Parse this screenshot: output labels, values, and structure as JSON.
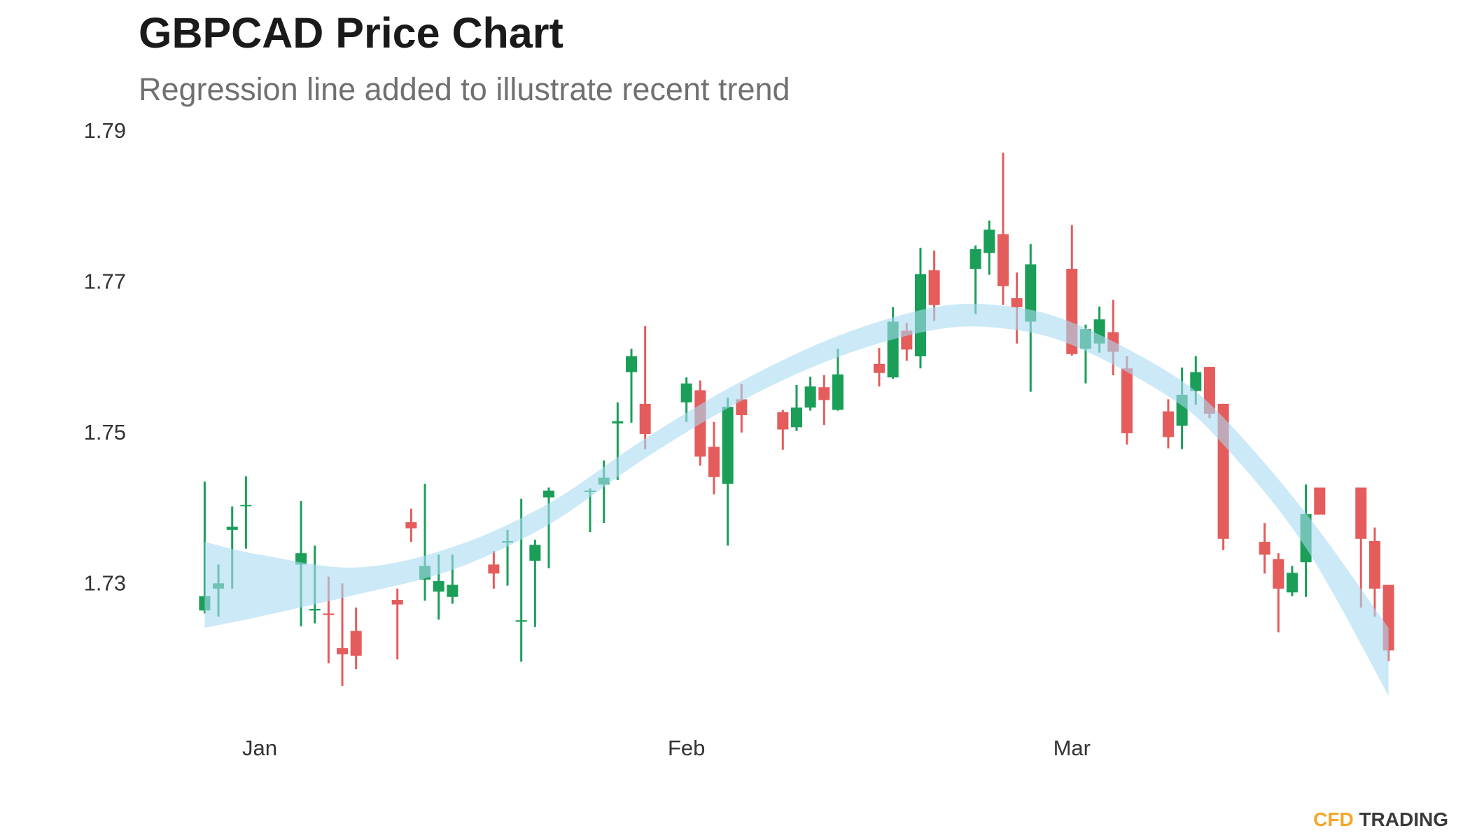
{
  "chart_data": {
    "type": "candlestick",
    "title": "GBPCAD Price Chart",
    "subtitle": "Regression line added to illustrate recent trend",
    "x": [
      -4,
      -3,
      -2,
      -1,
      3,
      4,
      5,
      6,
      7,
      10,
      11,
      12,
      13,
      14,
      17,
      18,
      19,
      20,
      21,
      24,
      25,
      26,
      27,
      28,
      31,
      32,
      33,
      34,
      35,
      38,
      39,
      40,
      41,
      42,
      45,
      46,
      47,
      48,
      49,
      52,
      53,
      54,
      55,
      56,
      59,
      60,
      61,
      62,
      63,
      66,
      67,
      68,
      69,
      70,
      73,
      74,
      75,
      76,
      77,
      80,
      81,
      82
    ],
    "open": [
      1.7266,
      1.7295,
      1.7373,
      1.7405,
      1.7327,
      1.7266,
      1.7262,
      1.7216,
      1.7239,
      1.728,
      1.7383,
      1.7307,
      1.7291,
      1.7284,
      1.7327,
      1.7356,
      1.7252,
      1.7332,
      1.7416,
      1.7423,
      1.7433,
      1.7514,
      1.7582,
      1.754,
      1.7542,
      1.7558,
      1.7483,
      1.7434,
      1.7546,
      1.7529,
      1.7509,
      1.7535,
      1.7562,
      1.7532,
      1.7593,
      1.7575,
      1.7637,
      1.7603,
      1.7717,
      1.7719,
      1.774,
      1.7765,
      1.768,
      1.7649,
      1.7719,
      1.7613,
      1.762,
      1.7635,
      1.7587,
      1.753,
      1.7511,
      1.7557,
      1.7589,
      1.754,
      1.7357,
      1.7334,
      1.729,
      1.733,
      1.7429,
      1.7429,
      1.7358,
      1.73
    ],
    "high": [
      1.7437,
      1.7327,
      1.7404,
      1.7444,
      1.7411,
      1.7352,
      1.7311,
      1.7302,
      1.727,
      1.7295,
      1.7401,
      1.7434,
      1.734,
      1.734,
      1.7345,
      1.7373,
      1.7414,
      1.736,
      1.7429,
      1.7428,
      1.7465,
      1.7542,
      1.7613,
      1.7643,
      1.7575,
      1.7571,
      1.7516,
      1.7548,
      1.7566,
      1.7532,
      1.7565,
      1.7576,
      1.7578,
      1.7613,
      1.7614,
      1.7668,
      1.7647,
      1.7747,
      1.7743,
      1.775,
      1.7783,
      1.7873,
      1.7714,
      1.7752,
      1.7777,
      1.7645,
      1.7669,
      1.7678,
      1.7603,
      1.7546,
      1.7588,
      1.7603,
      1.7589,
      1.754,
      1.7382,
      1.7342,
      1.7325,
      1.7433,
      1.7429,
      1.7429,
      1.7376,
      1.73
    ],
    "low": [
      1.7262,
      1.7258,
      1.7295,
      1.7348,
      1.7245,
      1.7249,
      1.7196,
      1.7166,
      1.7188,
      1.7201,
      1.7357,
      1.7279,
      1.7254,
      1.7275,
      1.7295,
      1.7299,
      1.7198,
      1.7244,
      1.7322,
      1.737,
      1.7382,
      1.7439,
      1.7515,
      1.748,
      1.7516,
      1.7458,
      1.742,
      1.7352,
      1.7502,
      1.7479,
      1.7504,
      1.7531,
      1.7512,
      1.7531,
      1.7563,
      1.7573,
      1.7597,
      1.7587,
      1.765,
      1.7659,
      1.7711,
      1.7671,
      1.762,
      1.7556,
      1.7604,
      1.7567,
      1.7608,
      1.7578,
      1.7486,
      1.7481,
      1.748,
      1.7539,
      1.7521,
      1.7346,
      1.7315,
      1.7237,
      1.7285,
      1.7284,
      1.7393,
      1.727,
      1.7258,
      1.7199
    ],
    "close": [
      1.7285,
      1.7302,
      1.7377,
      1.7406,
      1.7342,
      1.7268,
      1.726,
      1.7208,
      1.7206,
      1.7274,
      1.7375,
      1.7325,
      1.7305,
      1.73,
      1.7315,
      1.7358,
      1.7253,
      1.7353,
      1.7425,
      1.7425,
      1.7442,
      1.7517,
      1.7603,
      1.75,
      1.7567,
      1.747,
      1.7443,
      1.7536,
      1.7525,
      1.7506,
      1.7535,
      1.7563,
      1.7545,
      1.7579,
      1.7581,
      1.7649,
      1.7612,
      1.7712,
      1.7671,
      1.7745,
      1.7771,
      1.7696,
      1.7668,
      1.7725,
      1.7606,
      1.7639,
      1.7652,
      1.7609,
      1.7501,
      1.7496,
      1.7552,
      1.7582,
      1.7527,
      1.7361,
      1.734,
      1.7295,
      1.7316,
      1.7394,
      1.7393,
      1.7361,
      1.7295,
      1.7213
    ],
    "up_color": "#1a9e58",
    "down_color": "#e45c5c",
    "regression": {
      "x": [
        -4,
        0,
        7,
        14,
        21,
        28,
        35,
        42,
        49,
        54,
        59,
        66,
        70,
        76,
        82
      ],
      "values": [
        1.7299,
        1.7298,
        1.7305,
        1.7335,
        1.7394,
        1.7481,
        1.7557,
        1.7616,
        1.7653,
        1.7655,
        1.7633,
        1.7566,
        1.7504,
        1.7372,
        1.7213
      ],
      "lower": [
        1.7243,
        1.7258,
        1.7287,
        1.732,
        1.738,
        1.7468,
        1.7544,
        1.7602,
        1.7638,
        1.764,
        1.7618,
        1.755,
        1.7486,
        1.7349,
        1.7153
      ],
      "upper": [
        1.7357,
        1.734,
        1.7323,
        1.735,
        1.7408,
        1.7494,
        1.757,
        1.763,
        1.7668,
        1.767,
        1.7648,
        1.7582,
        1.7522,
        1.7395,
        1.7243
      ],
      "color": "#3d6d9c",
      "band_color": "#a9daf1"
    },
    "xlim": [
      -8.8,
      86.7
    ],
    "xticks": [
      {
        "value": 0,
        "label": "Jan"
      },
      {
        "value": 31,
        "label": "Feb"
      },
      {
        "value": 59,
        "label": "Mar"
      }
    ],
    "ylim": [
      1.71,
      1.79
    ],
    "yticks": [
      1.73,
      1.75,
      1.77,
      1.79
    ],
    "minor_yticks": [
      1.72,
      1.74,
      1.76,
      1.78
    ],
    "grid": true,
    "logo": {
      "accent": "CFD",
      "accent_color": "#f4a628",
      "text": "TRADING",
      "text_color": "#3a3a3a"
    }
  }
}
